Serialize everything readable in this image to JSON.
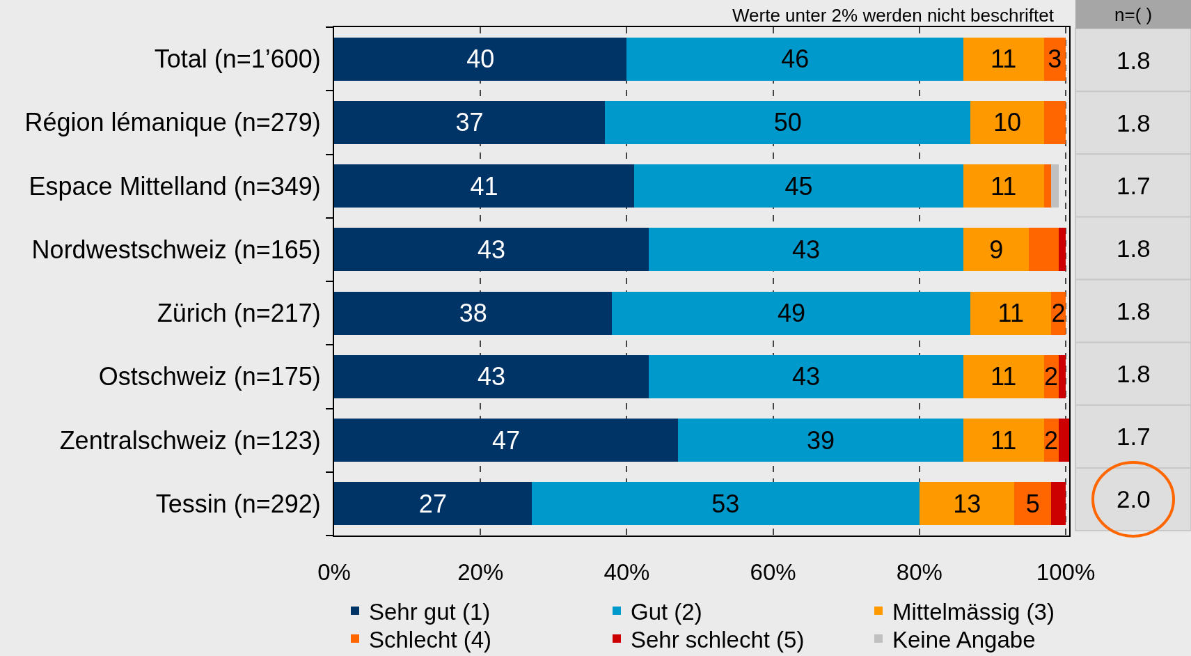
{
  "chart_data": [
    {
      "type": "bar",
      "orientation": "horizontal",
      "stacked": true,
      "categories": [
        "Total (n=1’600)",
        "Région lémanique (n=279)",
        "Espace Mittelland (n=349)",
        "Nordwestschweiz (n=165)",
        "Zürich (n=217)",
        "Ostschweiz (n=175)",
        "Zentralschweiz (n=123)",
        "Tessin (n=292)"
      ],
      "series": [
        {
          "name": "Sehr gut (1)",
          "color": "#003366",
          "values": [
            40,
            37,
            41,
            43,
            38,
            43,
            47,
            27
          ],
          "value_labels": [
            "40",
            "37",
            "41",
            "43",
            "38",
            "43",
            "47",
            "27"
          ]
        },
        {
          "name": "Gut (2)",
          "color": "#0099cc",
          "values": [
            46,
            50,
            45,
            43,
            49,
            43,
            39,
            53
          ],
          "value_labels": [
            "46",
            "50",
            "45",
            "43",
            "49",
            "43",
            "39",
            "53"
          ]
        },
        {
          "name": "Mittelmässig (3)",
          "color": "#ff9900",
          "values": [
            11,
            10,
            11,
            9,
            11,
            11,
            11,
            13
          ],
          "value_labels": [
            "11",
            "10",
            "11",
            "9",
            "11",
            "11",
            "11",
            "13"
          ]
        },
        {
          "name": "Schlecht (4)",
          "color": "#ff6600",
          "values": [
            3,
            3,
            1,
            4,
            2,
            2,
            2,
            5
          ],
          "value_labels": [
            "3",
            null,
            null,
            null,
            "2",
            "2",
            "2",
            "5"
          ]
        },
        {
          "name": "Sehr schlecht (5)",
          "color": "#cc0000",
          "values": [
            null,
            null,
            null,
            1,
            null,
            1,
            1.5,
            2
          ],
          "value_labels": [
            null,
            null,
            null,
            null,
            null,
            null,
            null,
            null
          ]
        },
        {
          "name": "Keine Angabe",
          "color": "#c0c0c0",
          "values": [
            null,
            null,
            1,
            null,
            null,
            null,
            null,
            null
          ],
          "value_labels": [
            null,
            null,
            null,
            null,
            null,
            null,
            null,
            null
          ]
        }
      ],
      "xlim": [
        0,
        100.5
      ],
      "xticks": [
        {
          "value": 0,
          "label": "0%"
        },
        {
          "value": 20,
          "label": "20%"
        },
        {
          "value": 40,
          "label": "40%"
        },
        {
          "value": 60,
          "label": "60%"
        },
        {
          "value": 80,
          "label": "80%"
        },
        {
          "value": 100,
          "label": "100%"
        }
      ],
      "grid": "x",
      "legend": "bottom",
      "annotations": [
        "Werte unter 2% werden nicht beschriftet"
      ]
    },
    {
      "type": "other",
      "title": "n=( )",
      "annotations": [
        "1.8",
        "1.8",
        "1.7",
        "1.8",
        "1.8",
        "1.8",
        "1.7",
        "2.0"
      ]
    }
  ]
}
